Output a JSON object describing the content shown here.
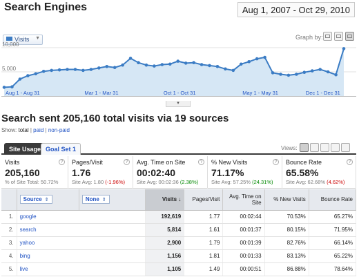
{
  "header": {
    "title": "Search Engines",
    "date_range": "Aug 1, 2007 - Oct 29, 2010"
  },
  "graph": {
    "metric_label": "Visits",
    "graph_by_label": "Graph by:",
    "color": "#3b7cc4",
    "fill_color": "#d6e7f5"
  },
  "chart_data": {
    "type": "area",
    "y_ticks": [
      "10,000",
      "5,000"
    ],
    "ylim": [
      0,
      12000
    ],
    "x_labels": [
      "Aug 1 - Aug 31",
      "Mar 1 - Mar 31",
      "Oct 1 - Oct 31",
      "May 1 - May 31",
      "Dec 1 - Dec 31"
    ],
    "series": [
      {
        "values": [
          1800,
          1900,
          3500,
          4200,
          4600,
          5100,
          5300,
          5400,
          5500,
          5500,
          5300,
          5500,
          5800,
          6100,
          5900,
          6400,
          7800,
          6900,
          6400,
          6200,
          6500,
          6600,
          7200,
          6800,
          6900,
          6500,
          6300,
          6100,
          5600,
          5300,
          6600,
          7100,
          7700,
          8000,
          4800,
          4500,
          4300,
          4500,
          4900,
          5200,
          5500,
          5000,
          4400,
          9800
        ]
      }
    ]
  },
  "summary": {
    "heading": "Search sent 205,160 total visits via 19 sources",
    "show_label": "Show:",
    "show_total": "total",
    "show_paid": "paid",
    "show_nonpaid": "non-paid",
    "sep": "|"
  },
  "tabs": [
    {
      "label": "Site Usage"
    },
    {
      "label": "Goal Set 1"
    }
  ],
  "views_label": "Views:",
  "scorecards": [
    {
      "label": "Visits",
      "value": "205,160",
      "sub": "% of Site Total: 50.72%",
      "delta": "",
      "delta_class": ""
    },
    {
      "label": "Pages/Visit",
      "value": "1.76",
      "sub": "Site Avg: 1.80",
      "delta": "(-1.96%)",
      "delta_class": "neg"
    },
    {
      "label": "Avg. Time on Site",
      "value": "00:02:40",
      "sub": "Site Avg: 00:02:36",
      "delta": "(2.38%)",
      "delta_class": "pos"
    },
    {
      "label": "% New Visits",
      "value": "71.17%",
      "sub": "Site Avg: 57.25%",
      "delta": "(24.31%)",
      "delta_class": "pos"
    },
    {
      "label": "Bounce Rate",
      "value": "65.58%",
      "sub": "Site Avg: 62.68%",
      "delta": "(4.62%)",
      "delta_class": "neg"
    }
  ],
  "table": {
    "dim1": "Source",
    "dim2": "None",
    "columns": [
      "Visits ↓",
      "Pages/Visit",
      "Avg. Time on Site",
      "% New Visits",
      "Bounce Rate"
    ],
    "rows": [
      {
        "num": "1.",
        "source": "google",
        "visits": "192,619",
        "ppv": "1.77",
        "time": "00:02:44",
        "new": "70.53%",
        "bounce": "65.27%"
      },
      {
        "num": "2.",
        "source": "search",
        "visits": "5,814",
        "ppv": "1.61",
        "time": "00:01:37",
        "new": "80.15%",
        "bounce": "71.95%"
      },
      {
        "num": "3.",
        "source": "yahoo",
        "visits": "2,900",
        "ppv": "1.79",
        "time": "00:01:39",
        "new": "82.76%",
        "bounce": "66.14%"
      },
      {
        "num": "4.",
        "source": "bing",
        "visits": "1,156",
        "ppv": "1.81",
        "time": "00:01:33",
        "new": "83.13%",
        "bounce": "65.22%"
      },
      {
        "num": "5.",
        "source": "live",
        "visits": "1,105",
        "ppv": "1.49",
        "time": "00:00:51",
        "new": "86.88%",
        "bounce": "78.64%"
      }
    ]
  }
}
